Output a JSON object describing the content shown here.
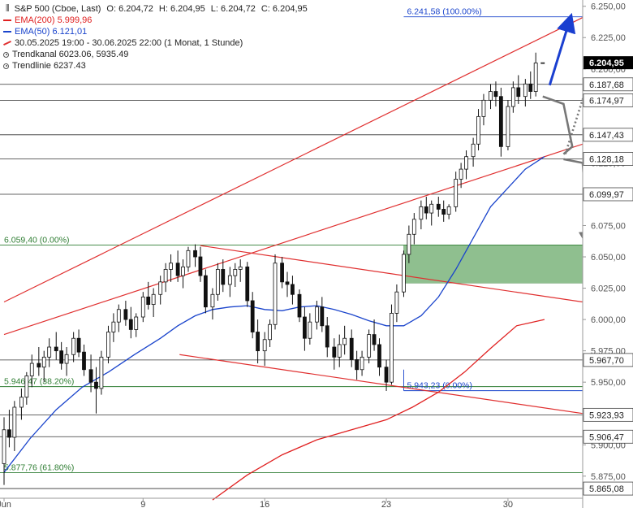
{
  "legend": {
    "title": "S&P 500 (Cboe, Last)",
    "open": "O: 6.204,72",
    "high": "H: 6.204,95",
    "low": "L: 6.204,72",
    "close": "C: 6.204,95",
    "ema200": "EMA(200)  5.999,96",
    "ema50": "EMA(50)  6.121,01",
    "range": "30.05.2025 19:00 - 30.06.2025 22:00   (1 Monat, 1 Stunde)",
    "trendchannel": "Trendkanal  6023.06, 5935.49",
    "trendline": "Trendlinie  6237.43"
  },
  "colors": {
    "up": "#111111",
    "down": "#111111",
    "ema200": "#e02020",
    "ema50": "#1a44cc",
    "trend": "#e03030",
    "level": "#333333",
    "fib": "#2e7d32",
    "fib_hi": "#1a44cc",
    "zone": "#8fbf8f",
    "arrow_up": "#1a3fd0",
    "arrow_grey": "#777777",
    "price_box": "#000000"
  },
  "chart_data": {
    "type": "candlestick",
    "xlabel": "",
    "ylabel": "",
    "ylim": [
      5858,
      6255
    ],
    "x_ticks": [
      {
        "label": "Jun",
        "day": 1
      },
      {
        "label": "9",
        "day": 9
      },
      {
        "label": "16",
        "day": 16
      },
      {
        "label": "23",
        "day": 23
      },
      {
        "label": "30",
        "day": 30
      }
    ],
    "x_range_days": [
      1.0,
      34.3
    ],
    "y_ticks": [
      {
        "value": 6250,
        "label": "6.250,00"
      },
      {
        "value": 6225,
        "label": "6.225,00"
      },
      {
        "value": 6200,
        "label": "6.200,00"
      },
      {
        "value": 6175,
        "label": "6.175,00"
      },
      {
        "value": 6150,
        "label": "6.150,00"
      },
      {
        "value": 6125,
        "label": "6.125,00"
      },
      {
        "value": 6100,
        "label": "6.100,00"
      },
      {
        "value": 6075,
        "label": "6.075,00"
      },
      {
        "value": 6050,
        "label": "6.050,00"
      },
      {
        "value": 6025,
        "label": "6.025,00"
      },
      {
        "value": 6000,
        "label": "6.000,00"
      },
      {
        "value": 5975,
        "label": "5.975,00"
      },
      {
        "value": 5950,
        "label": "5.950,00"
      },
      {
        "value": 5925,
        "label": "5.925,00"
      },
      {
        "value": 5900,
        "label": "5.900,00"
      },
      {
        "value": 5875,
        "label": "5.875,00"
      }
    ],
    "levels": [
      {
        "value": 6187.68,
        "label": "6.187,68"
      },
      {
        "value": 6174.97,
        "label": "6.174,97"
      },
      {
        "value": 6147.43,
        "label": "6.147,43"
      },
      {
        "value": 6128.18,
        "label": "6.128,18"
      },
      {
        "value": 6099.97,
        "label": "6.099,97"
      },
      {
        "value": 5967.7,
        "label": "5.967,70"
      },
      {
        "value": 5923.93,
        "label": "5.923,93"
      },
      {
        "value": 5906.47,
        "label": "5.906,47"
      },
      {
        "value": 5865.08,
        "label": "5.865,08"
      }
    ],
    "last_price": {
      "value": 6204.95,
      "label": "6.204,95"
    },
    "fib_levels": [
      {
        "value": 6241.58,
        "label": "6.241,58 (100.00%)",
        "color": "fib_hi"
      },
      {
        "value": 6059.4,
        "label": "6.059,40 (0.00%)",
        "color": "fib"
      },
      {
        "value": 5946.47,
        "label": "5.946,47 (38.20%)",
        "color": "fib"
      },
      {
        "value": 5943.23,
        "label": "5.943,23 (0.00%)",
        "color": "fib_hi"
      },
      {
        "value": 5877.76,
        "label": "5.877,76 (61.80%)",
        "color": "fib"
      }
    ],
    "zone": {
      "x0": 24.0,
      "x1": 34.3,
      "y0": 6029,
      "y1": 6059.4
    },
    "trendlines": [
      {
        "name": "upper-channel",
        "points": [
          [
            1.0,
            6014
          ],
          [
            34.3,
            6241
          ]
        ]
      },
      {
        "name": "lower-channel",
        "points": [
          [
            1.0,
            5988
          ],
          [
            34.3,
            6140
          ]
        ]
      },
      {
        "name": "descending-upper",
        "points": [
          [
            12.3,
            6059
          ],
          [
            34.3,
            6014
          ]
        ]
      },
      {
        "name": "descending-lower",
        "points": [
          [
            11.1,
            5972
          ],
          [
            34.3,
            5925
          ]
        ]
      }
    ],
    "ema50": [
      [
        1.0,
        5878
      ],
      [
        2.5,
        5905
      ],
      [
        4,
        5928
      ],
      [
        5.5,
        5946
      ],
      [
        7,
        5958
      ],
      [
        8.5,
        5972
      ],
      [
        10,
        5985
      ],
      [
        11,
        5995
      ],
      [
        12,
        6003
      ],
      [
        13,
        6008
      ],
      [
        14,
        6010
      ],
      [
        15,
        6011
      ],
      [
        16,
        6008
      ],
      [
        17,
        6007
      ],
      [
        18,
        6010
      ],
      [
        19,
        6011
      ],
      [
        20,
        6008
      ],
      [
        21,
        6004
      ],
      [
        22,
        5999
      ],
      [
        23,
        5995
      ],
      [
        24,
        5995
      ],
      [
        25,
        6003
      ],
      [
        26,
        6018
      ],
      [
        27,
        6040
      ],
      [
        28,
        6065
      ],
      [
        29,
        6090
      ],
      [
        30,
        6105
      ],
      [
        31,
        6120
      ],
      [
        32.1,
        6130
      ]
    ],
    "ema200": [
      [
        13,
        5856
      ],
      [
        15,
        5876
      ],
      [
        17,
        5892
      ],
      [
        19,
        5904
      ],
      [
        21,
        5912
      ],
      [
        23,
        5920
      ],
      [
        24.5,
        5930
      ],
      [
        26,
        5942
      ],
      [
        27.5,
        5958
      ],
      [
        29,
        5977
      ],
      [
        30.5,
        5995
      ],
      [
        32.1,
        6000
      ]
    ],
    "candles": [
      [
        1.0,
        5885,
        5922,
        5868,
        5912
      ],
      [
        1.3,
        5912,
        5928,
        5898,
        5906
      ],
      [
        1.6,
        5906,
        5935,
        5895,
        5930
      ],
      [
        2.0,
        5930,
        5945,
        5920,
        5938
      ],
      [
        2.3,
        5938,
        5958,
        5932,
        5955
      ],
      [
        2.6,
        5955,
        5972,
        5946,
        5965
      ],
      [
        3.0,
        5965,
        5978,
        5955,
        5962
      ],
      [
        3.3,
        5962,
        5975,
        5950,
        5970
      ],
      [
        3.6,
        5970,
        5985,
        5962,
        5978
      ],
      [
        4.0,
        5978,
        5990,
        5968,
        5975
      ],
      [
        4.3,
        5975,
        5982,
        5960,
        5965
      ],
      [
        4.6,
        5965,
        5978,
        5955,
        5972
      ],
      [
        5.0,
        5972,
        5990,
        5966,
        5985
      ],
      [
        5.3,
        5985,
        5992,
        5970,
        5974
      ],
      [
        5.6,
        5974,
        5980,
        5955,
        5960
      ],
      [
        6.0,
        5960,
        5972,
        5942,
        5950
      ],
      [
        6.3,
        5950,
        5962,
        5925,
        5945
      ],
      [
        6.6,
        5945,
        5975,
        5940,
        5970
      ],
      [
        7.0,
        5970,
        5995,
        5965,
        5990
      ],
      [
        7.3,
        5990,
        6005,
        5982,
        5998
      ],
      [
        7.6,
        5998,
        6012,
        5990,
        6008
      ],
      [
        8.0,
        6008,
        6015,
        5995,
        6000
      ],
      [
        8.3,
        6000,
        6010,
        5985,
        5992
      ],
      [
        8.6,
        5992,
        6005,
        5986,
        6002
      ],
      [
        9.0,
        6002,
        6022,
        5998,
        6018
      ],
      [
        9.3,
        6018,
        6030,
        6008,
        6012
      ],
      [
        9.6,
        6012,
        6025,
        6002,
        6020
      ],
      [
        10.0,
        6020,
        6035,
        6012,
        6030
      ],
      [
        10.3,
        6030,
        6045,
        6022,
        6040
      ],
      [
        10.6,
        6040,
        6052,
        6030,
        6045
      ],
      [
        11.0,
        6045,
        6055,
        6030,
        6035
      ],
      [
        11.3,
        6035,
        6048,
        6025,
        6042
      ],
      [
        11.6,
        6042,
        6058,
        6038,
        6055
      ],
      [
        12.0,
        6055,
        6060,
        6042,
        6050
      ],
      [
        12.3,
        6050,
        6058,
        6030,
        6035
      ],
      [
        12.6,
        6035,
        6040,
        6005,
        6010
      ],
      [
        13.0,
        6010,
        6025,
        6000,
        6020
      ],
      [
        13.3,
        6020,
        6045,
        6015,
        6040
      ],
      [
        13.6,
        6040,
        6048,
        6022,
        6028
      ],
      [
        14.0,
        6028,
        6042,
        6018,
        6035
      ],
      [
        14.3,
        6035,
        6045,
        6026,
        6040
      ],
      [
        14.6,
        6040,
        6048,
        6030,
        6042
      ],
      [
        15.0,
        6042,
        6046,
        6010,
        6015
      ],
      [
        15.3,
        6015,
        6022,
        5985,
        5990
      ],
      [
        15.6,
        5990,
        6000,
        5965,
        5975
      ],
      [
        16.0,
        5975,
        5990,
        5963,
        5984
      ],
      [
        16.3,
        5984,
        6000,
        5978,
        5996
      ],
      [
        16.6,
        5996,
        6052,
        5992,
        6045
      ],
      [
        17.0,
        6045,
        6050,
        6025,
        6030
      ],
      [
        17.3,
        6030,
        6038,
        6018,
        6028
      ],
      [
        17.6,
        6028,
        6035,
        6012,
        6020
      ],
      [
        18.0,
        6020,
        6024,
        5998,
        6002
      ],
      [
        18.3,
        6002,
        6010,
        5975,
        5985
      ],
      [
        18.6,
        5985,
        6005,
        5980,
        5998
      ],
      [
        19.0,
        5998,
        6015,
        5992,
        6010
      ],
      [
        19.3,
        6010,
        6018,
        5990,
        5995
      ],
      [
        19.6,
        5995,
        6002,
        5970,
        5978
      ],
      [
        20.0,
        5978,
        5985,
        5960,
        5970
      ],
      [
        20.3,
        5970,
        5988,
        5962,
        5980
      ],
      [
        20.6,
        5980,
        5995,
        5972,
        5985
      ],
      [
        21.0,
        5985,
        5992,
        5962,
        5968
      ],
      [
        21.3,
        5968,
        5975,
        5952,
        5960
      ],
      [
        21.6,
        5960,
        5975,
        5955,
        5970
      ],
      [
        22.0,
        5970,
        5992,
        5965,
        5988
      ],
      [
        22.3,
        5988,
        6000,
        5975,
        5980
      ],
      [
        22.6,
        5980,
        5985,
        5955,
        5962
      ],
      [
        23.0,
        5962,
        5968,
        5943,
        5950
      ],
      [
        23.3,
        5950,
        6012,
        5948,
        6005
      ],
      [
        23.6,
        6005,
        6028,
        5998,
        6022
      ],
      [
        24.0,
        6022,
        6055,
        6018,
        6052
      ],
      [
        24.3,
        6052,
        6075,
        6045,
        6068
      ],
      [
        24.6,
        6068,
        6085,
        6060,
        6080
      ],
      [
        25.0,
        6080,
        6095,
        6072,
        6090
      ],
      [
        25.3,
        6090,
        6098,
        6080,
        6085
      ],
      [
        25.6,
        6085,
        6095,
        6075,
        6092
      ],
      [
        26.0,
        6092,
        6098,
        6082,
        6088
      ],
      [
        26.3,
        6088,
        6095,
        6078,
        6084
      ],
      [
        26.6,
        6084,
        6092,
        6080,
        6090
      ],
      [
        27.0,
        6090,
        6118,
        6086,
        6112
      ],
      [
        27.3,
        6112,
        6125,
        6105,
        6120
      ],
      [
        27.6,
        6120,
        6135,
        6112,
        6130
      ],
      [
        28.0,
        6130,
        6145,
        6122,
        6140
      ],
      [
        28.3,
        6140,
        6168,
        6135,
        6162
      ],
      [
        28.6,
        6162,
        6180,
        6155,
        6175
      ],
      [
        29.0,
        6175,
        6188,
        6168,
        6182
      ],
      [
        29.3,
        6182,
        6190,
        6170,
        6178
      ],
      [
        29.6,
        6178,
        6185,
        6130,
        6138
      ],
      [
        30.0,
        6138,
        6175,
        6135,
        6170
      ],
      [
        30.3,
        6170,
        6190,
        6165,
        6185
      ],
      [
        30.6,
        6185,
        6195,
        6172,
        6178
      ],
      [
        31.0,
        6178,
        6192,
        6170,
        6188
      ],
      [
        31.3,
        6188,
        6198,
        6176,
        6182
      ],
      [
        31.6,
        6182,
        6213,
        6178,
        6204.72
      ],
      [
        32.0,
        6204.72,
        6204.95,
        6204.72,
        6204.95
      ]
    ],
    "annotations": [
      {
        "name": "blue-up-arrow",
        "kind": "arrow",
        "color": "arrow_up",
        "dashed": false,
        "points": [
          [
            32.4,
            6187
          ],
          [
            33.6,
            6241
          ]
        ]
      },
      {
        "name": "grey-dotted-up-arrow",
        "kind": "arrow",
        "color": "arrow_grey",
        "dashed": true,
        "points": [
          [
            33.3,
            6132
          ],
          [
            35.7,
            6237
          ]
        ]
      },
      {
        "name": "grey-down-step-arrow",
        "kind": "arrow",
        "color": "arrow_grey",
        "dashed": false,
        "points": [
          [
            32.0,
            6178
          ],
          [
            33.2,
            6172
          ],
          [
            33.7,
            6138
          ],
          [
            33.2,
            6132
          ]
        ]
      },
      {
        "name": "grey-down-arrow",
        "kind": "arrow",
        "color": "arrow_grey",
        "dashed": false,
        "points": [
          [
            33.2,
            6128
          ],
          [
            34.3,
            6125
          ],
          [
            34.6,
            6060
          ]
        ]
      }
    ]
  }
}
